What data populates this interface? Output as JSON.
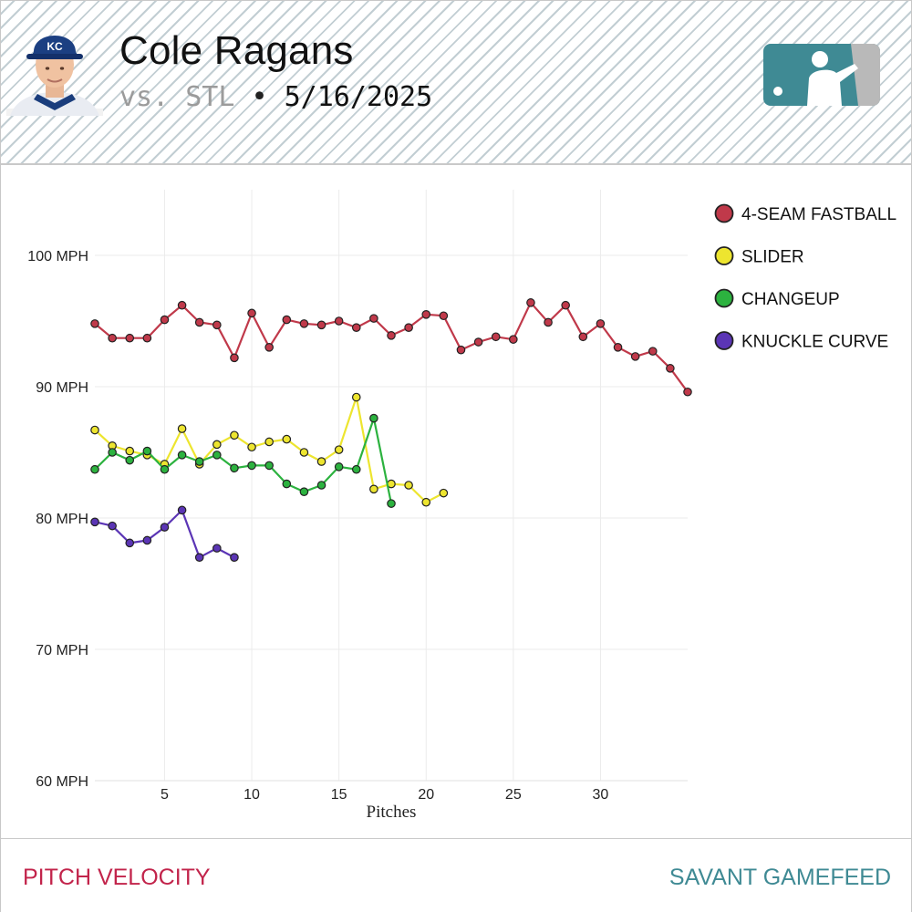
{
  "header": {
    "player_name": "Cole Ragans",
    "opponent": "vs. STL",
    "separator": "•",
    "game_date": "5/16/2025",
    "team_cap_letters": "KC"
  },
  "footer": {
    "left_label": "PITCH VELOCITY",
    "right_label": "SAVANT GAMEFEED"
  },
  "colors": {
    "fastball": "#c0394a",
    "slider": "#ede52f",
    "changeup": "#2cb23f",
    "curve": "#5b35b5",
    "footer_left": "#c2244b",
    "footer_right": "#3f8a94",
    "logo_teal": "#3f8a94",
    "logo_gray": "#b9b9b9"
  },
  "chart_data": {
    "type": "line",
    "xlabel": "Pitches",
    "ylabel": "",
    "xlim": [
      1,
      35
    ],
    "ylim": [
      60,
      105
    ],
    "x_ticks": [
      5,
      10,
      15,
      20,
      25,
      30
    ],
    "y_ticks": [
      {
        "value": 60,
        "label": "60 MPH"
      },
      {
        "value": 70,
        "label": "70 MPH"
      },
      {
        "value": 80,
        "label": "80 MPH"
      },
      {
        "value": 90,
        "label": "90 MPH"
      },
      {
        "value": 100,
        "label": "100 MPH"
      }
    ],
    "grid": true,
    "legend_position": "top-right",
    "series": [
      {
        "name": "4-SEAM FASTBALL",
        "color": "#c0394a",
        "values": [
          94.8,
          93.7,
          93.7,
          93.7,
          95.1,
          96.2,
          94.9,
          94.7,
          92.2,
          95.6,
          93.0,
          95.1,
          94.8,
          94.7,
          95.0,
          94.5,
          95.2,
          93.9,
          94.5,
          95.5,
          95.4,
          92.8,
          93.4,
          93.8,
          93.6,
          96.4,
          94.9,
          96.2,
          93.8,
          94.8,
          93.0,
          92.3,
          92.7,
          91.4,
          89.6
        ]
      },
      {
        "name": "SLIDER",
        "color": "#ede52f",
        "values": [
          86.7,
          85.5,
          85.1,
          84.8,
          84.1,
          86.8,
          84.1,
          85.6,
          86.3,
          85.4,
          85.8,
          86.0,
          85.0,
          84.3,
          85.2,
          89.2,
          82.2,
          82.6,
          82.5,
          81.2,
          81.9
        ]
      },
      {
        "name": "CHANGEUP",
        "color": "#2cb23f",
        "values": [
          83.7,
          85.0,
          84.4,
          85.1,
          83.7,
          84.8,
          84.3,
          84.8,
          83.8,
          84.0,
          84.0,
          82.6,
          82.0,
          82.5,
          83.9,
          83.7,
          87.6,
          81.1
        ]
      },
      {
        "name": "KNUCKLE CURVE",
        "color": "#5b35b5",
        "values": [
          79.7,
          79.4,
          78.1,
          78.3,
          79.3,
          80.6,
          77.0,
          77.7,
          77.0
        ]
      }
    ]
  }
}
